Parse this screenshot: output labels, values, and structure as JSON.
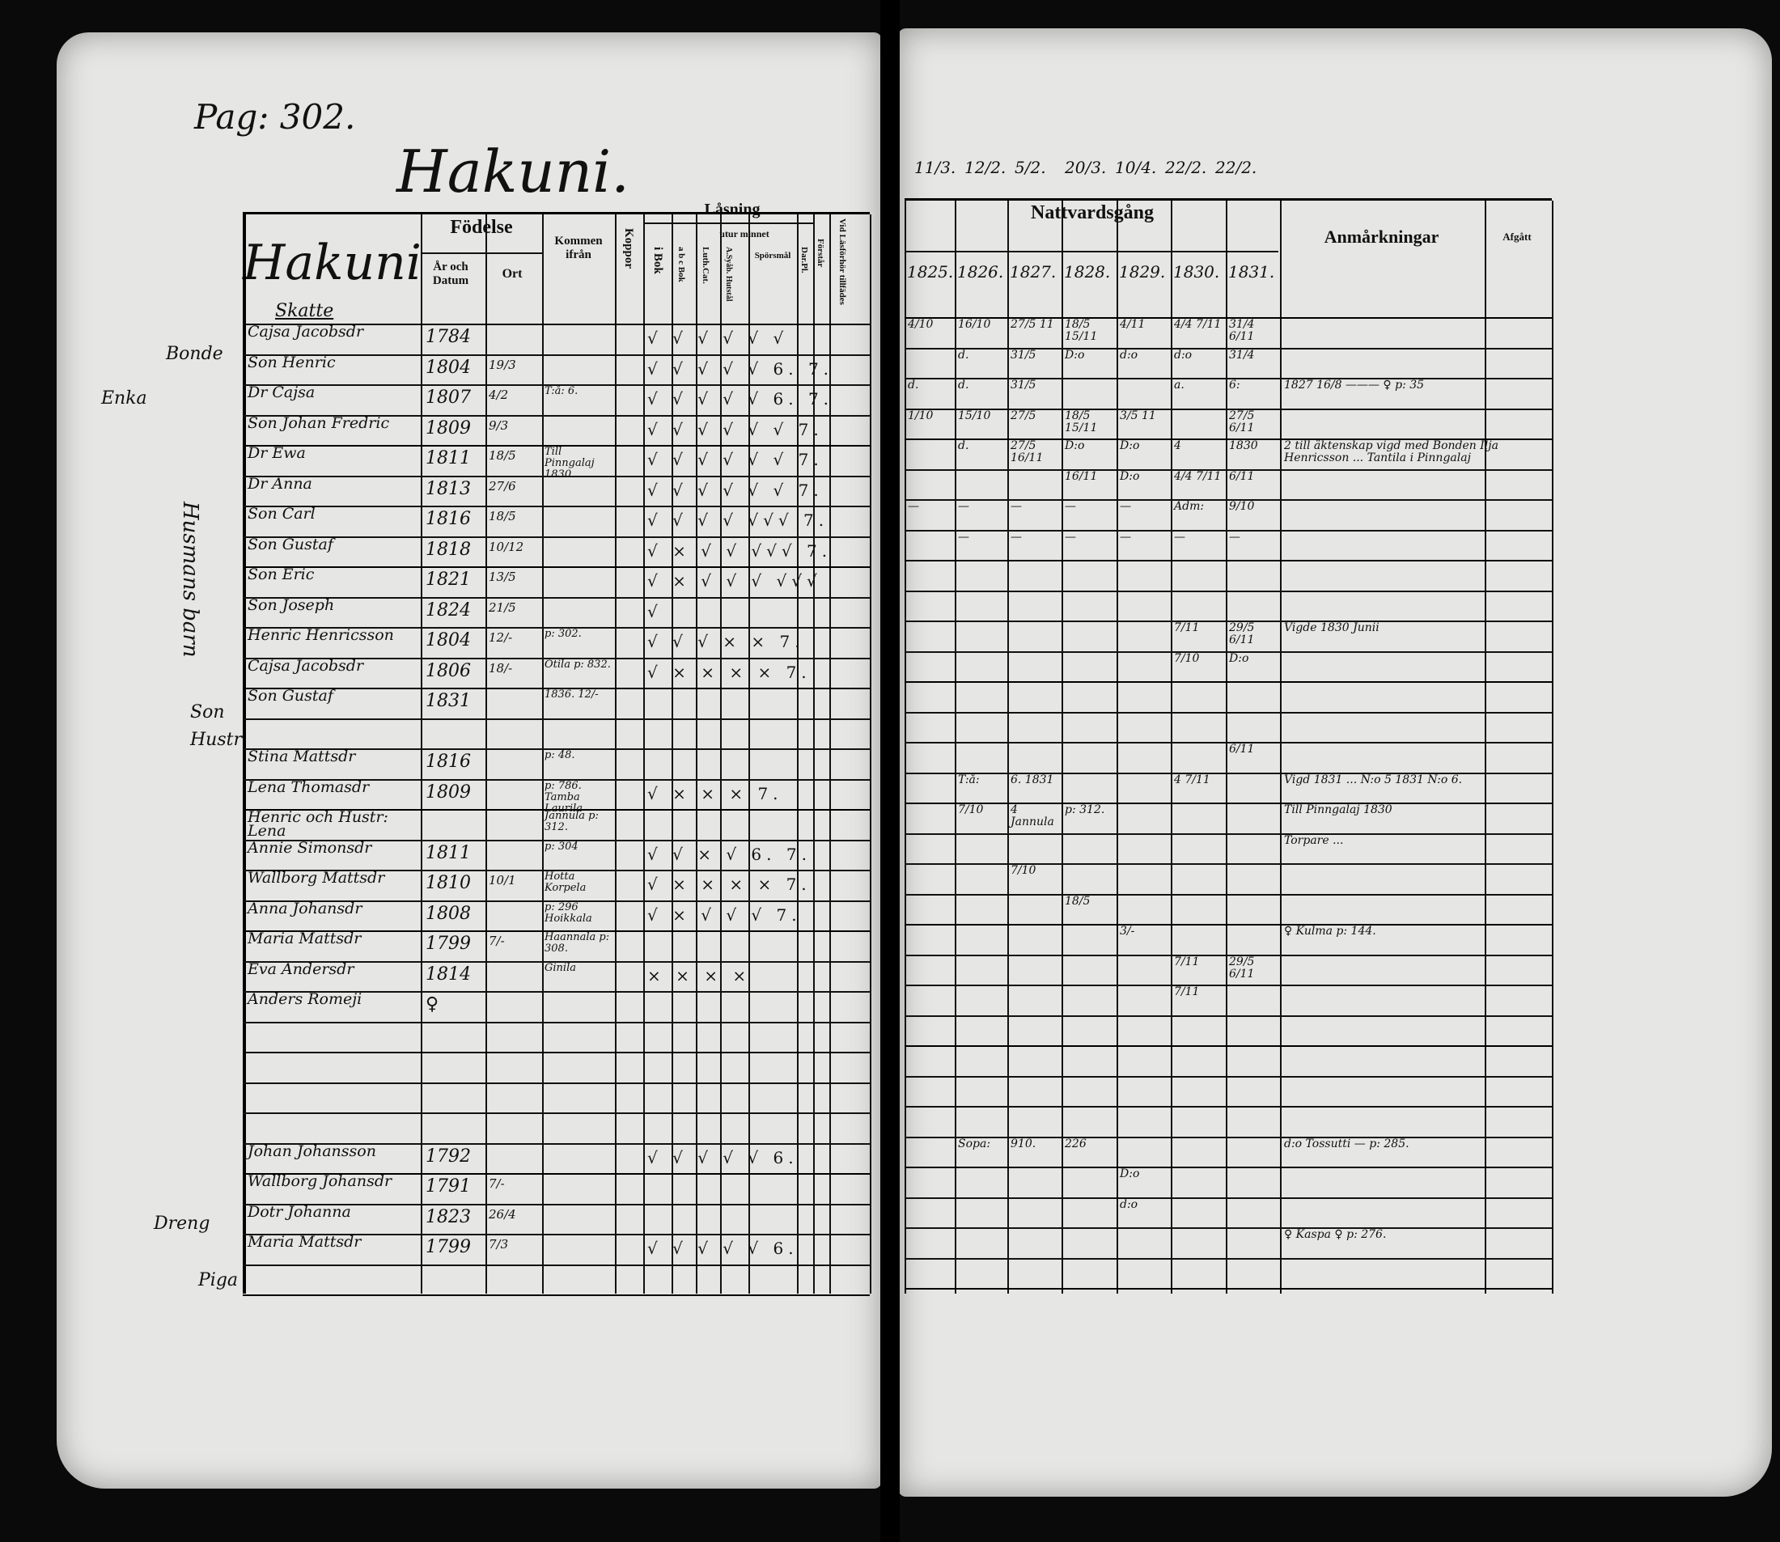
{
  "page_ref": "Pag: 302.",
  "village_title": "Hakuni.",
  "left_header": {
    "village_name": "Hakuni",
    "section": "Skatte",
    "fodelse": "Födelse",
    "ar_och_datum": "År och Datum",
    "ort": "Ort",
    "kommen_ifran": "Kommen ifrån",
    "koppor": "Koppor",
    "lasning": "Låsning",
    "i_bok": "i Bok",
    "utur_minnet": "utur minnet",
    "abc_bok": "a b c Bok",
    "luth_cat": "Luth.Cat.",
    "a_svebilius": "A.Syåb. Hutstål",
    "sporsmal": "Spörsmål",
    "dar_pl": "Dar.Pl.",
    "forstar": "Förstår",
    "vid_lasforhor": "Vid Läsförhör tillfädes"
  },
  "right_header": {
    "nattvardsgang": "Nattvardsgång",
    "years": [
      "1825.",
      "1826.",
      "1827.",
      "1828.",
      "1829.",
      "1830.",
      "1831."
    ],
    "anmarkningar": "Anmårkningar",
    "afgatt": "Afgått",
    "top_dates": [
      "11/3.",
      "12/2.",
      "5/2.",
      "20/3.",
      "10/4.",
      "22/2.",
      "22/2."
    ]
  },
  "margin_labels": [
    "Bonde",
    "Enka",
    "Son",
    "Hustr",
    "Dreng",
    "Piga",
    "Husmans barn"
  ],
  "rows": [
    {
      "name": "Cajsa Jacobsdr",
      "year": "1784",
      "date": "",
      "from": "",
      "marks": "√ √ √ √ √ √",
      "nv": [
        "4/10",
        "16/10",
        "27/5 11",
        "18/5 15/11",
        "4/11",
        "4/4 7/11",
        "31/4 6/11"
      ],
      "remark": ""
    },
    {
      "name": "Son Henric",
      "year": "1804",
      "date": "19/3",
      "from": "",
      "marks": "√ √ √ √ √ 6. 7.",
      "nv": [
        "",
        "d.",
        "31/5",
        "D:o",
        "d:o",
        "d:o",
        "31/4"
      ],
      "remark": ""
    },
    {
      "name": "Dr Cajsa",
      "year": "1807",
      "date": "4/2",
      "from": "T:å: 6.",
      "marks": "√ √ √ √ √ 6. 7.",
      "nv": [
        "d.",
        "d.",
        "31/5",
        "",
        "",
        "a.",
        "6:"
      ],
      "remark": "1827 16/8 ——— ♀ p: 35"
    },
    {
      "name": "Son Johan Fredric",
      "year": "1809",
      "date": "9/3",
      "from": "",
      "marks": "√ √ √ √ √ √ 7.",
      "nv": [
        "1/10",
        "15/10",
        "27/5",
        "18/5 15/11",
        "3/5 11",
        "",
        "27/5 6/11"
      ],
      "remark": ""
    },
    {
      "name": "Dr Ewa",
      "year": "1811",
      "date": "18/5",
      "from": "Till Pinngalaj 1830",
      "marks": "√ √ √ √ √ √ 7.",
      "nv": [
        "",
        "d.",
        "27/5 16/11",
        "D:o",
        "D:o",
        "4",
        "1830"
      ],
      "remark": "2 till äktenskap vigd med Bonden Ilja Henricsson ... Tantila i Pinngalaj"
    },
    {
      "name": "Dr Anna",
      "year": "1813",
      "date": "27/6",
      "from": "",
      "marks": "√ √ √ √ √ √ 7.",
      "nv": [
        "",
        "",
        "",
        "16/11",
        "D:o",
        "4/4 7/11",
        "6/11"
      ],
      "remark": ""
    },
    {
      "name": "Son Carl",
      "year": "1816",
      "date": "18/5",
      "from": "",
      "marks": "√ √ √ √ √√√ 7.",
      "nv": [
        "—",
        "—",
        "—",
        "—",
        "—",
        "Adm:",
        "9/10"
      ],
      "remark": ""
    },
    {
      "name": "Son Gustaf",
      "year": "1818",
      "date": "10/12",
      "from": "",
      "marks": "√ × √ √ √√√ 7.",
      "nv": [
        "",
        "—",
        "—",
        "—",
        "—",
        "—",
        "—"
      ],
      "remark": ""
    },
    {
      "name": "Son Eric",
      "year": "1821",
      "date": "13/5",
      "from": "",
      "marks": "√ × √ √ √ √√√",
      "nv": [
        "",
        "",
        "",
        "",
        "",
        "",
        ""
      ],
      "remark": ""
    },
    {
      "name": "Son Joseph",
      "year": "1824",
      "date": "21/5",
      "from": "",
      "marks": "√",
      "nv": [
        "",
        "",
        "",
        "",
        "",
        "",
        ""
      ],
      "remark": ""
    },
    {
      "name": "Henric Henricsson",
      "year": "1804",
      "date": "12/-",
      "from": "p: 302.",
      "marks": "√ √ √ × × 7.",
      "nv": [
        "",
        "",
        "",
        "",
        "",
        "7/11",
        "29/5 6/11"
      ],
      "remark": "Vigde 1830 Junii"
    },
    {
      "name": "Cajsa Jacobsdr",
      "year": "1806",
      "date": "18/-",
      "from": "Otila p: 832.",
      "marks": "√ × × × × 7.",
      "nv": [
        "",
        "",
        "",
        "",
        "",
        "7/10",
        "D:o"
      ],
      "remark": ""
    },
    {
      "name": "Son Gustaf",
      "year": "1831",
      "date": "",
      "from": "1836. 12/-",
      "marks": "",
      "nv": [
        "",
        "",
        "",
        "",
        "",
        "",
        ""
      ],
      "remark": ""
    },
    {
      "name": "",
      "year": "",
      "date": "",
      "from": "",
      "marks": "",
      "nv": [
        "",
        "",
        "",
        "",
        "",
        "",
        ""
      ],
      "remark": ""
    },
    {
      "name": "Stina Mattsdr",
      "year": "1816",
      "date": "",
      "from": "p: 48.",
      "marks": "",
      "nv": [
        "",
        "",
        "",
        "",
        "",
        "",
        "6/11"
      ],
      "remark": ""
    },
    {
      "name": "Lena Thomasdr",
      "year": "1809",
      "date": "",
      "from": "p: 786. Tamba Laurila",
      "marks": "√ × × × 7.",
      "nv": [
        "",
        "T:å:",
        "6. 1831",
        "",
        "",
        "4 7/11",
        ""
      ],
      "remark": "Vigd 1831 ... N:o 5 1831 N:o 6."
    },
    {
      "name": "Henric och Hustr: Lena",
      "year": "",
      "date": "",
      "from": "Jannula p: 312.",
      "marks": "",
      "nv": [
        "",
        "7/10",
        "4 Jannula",
        "p: 312.",
        "",
        "",
        ""
      ],
      "remark": "Till Pinngalaj 1830"
    },
    {
      "name": "Annie Simonsdr",
      "year": "1811",
      "date": "",
      "from": "p: 304",
      "marks": "√ √ × √ 6. 7.",
      "nv": [
        "",
        "",
        "",
        "",
        "",
        "",
        ""
      ],
      "remark": "Torpare ..."
    },
    {
      "name": "Wallborg Mattsdr",
      "year": "1810",
      "date": "10/1",
      "from": "Hotta Korpela",
      "marks": "√ × × × × 7.",
      "nv": [
        "",
        "",
        "7/10",
        "",
        "",
        "",
        ""
      ],
      "remark": ""
    },
    {
      "name": "Anna Johansdr",
      "year": "1808",
      "date": "",
      "from": "p: 296 Hoikkala",
      "marks": "√ × √ √ √ 7.",
      "nv": [
        "",
        "",
        "",
        "18/5",
        "",
        "",
        ""
      ],
      "remark": ""
    },
    {
      "name": "Maria Mattsdr",
      "year": "1799",
      "date": "7/-",
      "from": "Haannala p: 308.",
      "marks": "",
      "nv": [
        "",
        "",
        "",
        "",
        "3/-",
        "",
        ""
      ],
      "remark": "♀ Kulma p: 144."
    },
    {
      "name": "Eva Andersdr",
      "year": "1814",
      "date": "",
      "from": "Ginila",
      "marks": "× × × ×",
      "nv": [
        "",
        "",
        "",
        "",
        "",
        "7/11",
        "29/5 6/11"
      ],
      "remark": ""
    },
    {
      "name": "Anders Romeji",
      "year": "♀",
      "date": "",
      "from": "",
      "marks": "",
      "nv": [
        "",
        "",
        "",
        "",
        "",
        "7/11",
        ""
      ],
      "remark": ""
    },
    {
      "name": "",
      "year": "",
      "date": "",
      "from": "",
      "marks": "",
      "nv": [
        "",
        "",
        "",
        "",
        "",
        "",
        ""
      ],
      "remark": ""
    },
    {
      "name": "",
      "year": "",
      "date": "",
      "from": "",
      "marks": "",
      "nv": [
        "",
        "",
        "",
        "",
        "",
        "",
        ""
      ],
      "remark": ""
    },
    {
      "name": "",
      "year": "",
      "date": "",
      "from": "",
      "marks": "",
      "nv": [
        "",
        "",
        "",
        "",
        "",
        "",
        ""
      ],
      "remark": ""
    },
    {
      "name": "",
      "year": "",
      "date": "",
      "from": "",
      "marks": "",
      "nv": [
        "",
        "",
        "",
        "",
        "",
        "",
        ""
      ],
      "remark": ""
    },
    {
      "name": "Johan Johansson",
      "year": "1792",
      "date": "",
      "from": "",
      "marks": "√ √ √ √ √ 6.",
      "nv": [
        "",
        "Sopa:",
        "910.",
        "226",
        "",
        "",
        ""
      ],
      "remark": "d:o Tossutti — p: 285."
    },
    {
      "name": "Wallborg Johansdr",
      "year": "1791",
      "date": "7/-",
      "from": "",
      "marks": "",
      "nv": [
        "",
        "",
        "",
        "",
        "D:o",
        "",
        ""
      ],
      "remark": ""
    },
    {
      "name": "Dotr Johanna",
      "year": "1823",
      "date": "26/4",
      "from": "",
      "marks": "",
      "nv": [
        "",
        "",
        "",
        "",
        "d:o",
        "",
        ""
      ],
      "remark": ""
    },
    {
      "name": "Maria Mattsdr",
      "year": "1799",
      "date": "7/3",
      "from": "",
      "marks": "√ √ √ √ √ 6.",
      "nv": [
        "",
        "",
        "",
        "",
        "",
        "",
        ""
      ],
      "remark": "♀ Kaspa ♀ p: 276."
    }
  ]
}
